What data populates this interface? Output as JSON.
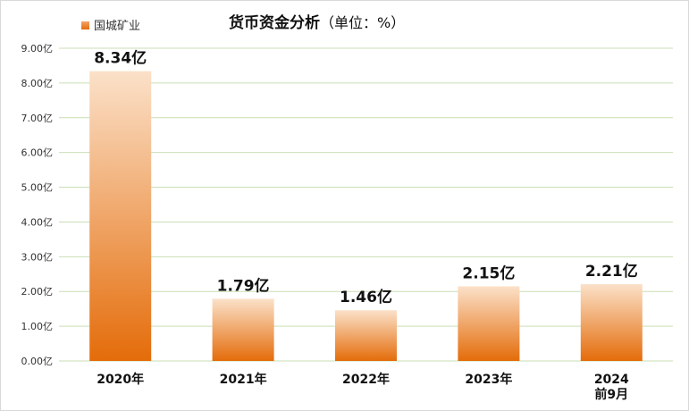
{
  "chart_data": {
    "type": "bar",
    "title": "货币资金分析",
    "subtitle": "（单位：%）",
    "categories": [
      [
        "2020年"
      ],
      [
        "2021年"
      ],
      [
        "2022年"
      ],
      [
        "2023年"
      ],
      [
        "2024",
        "前9月"
      ]
    ],
    "series": [
      {
        "name": "国城矿业",
        "values": [
          8.34,
          1.79,
          1.46,
          2.15,
          2.21
        ],
        "labels": [
          "8.34亿",
          "1.79亿",
          "1.46亿",
          "2.15亿",
          "2.21亿"
        ]
      }
    ],
    "ylim": [
      0,
      9
    ],
    "yticks": [
      "0.00亿",
      "1.00亿",
      "2.00亿",
      "3.00亿",
      "4.00亿",
      "5.00亿",
      "6.00亿",
      "7.00亿",
      "8.00亿",
      "9.00亿"
    ],
    "grid": true,
    "legend_position": "top-left",
    "colors": {
      "bar_top": "#fbe1c9",
      "bar_bottom": "#e46c0a",
      "grid": "#c9dfb4",
      "legend": "#e8833a"
    }
  }
}
